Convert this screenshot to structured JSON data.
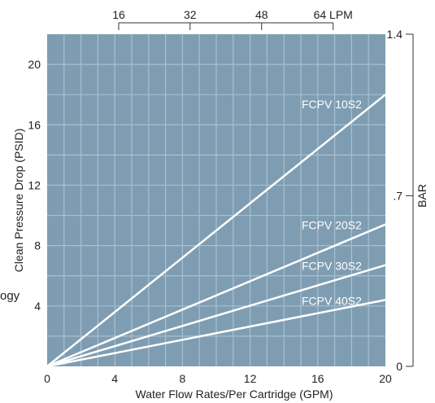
{
  "chart_data": {
    "type": "line",
    "title": "",
    "xlabel": "Water Flow Rates/Per Cartridge (GPM)",
    "ylabel": "Clean Pressure Drop (PSID)",
    "xlim": [
      0,
      20
    ],
    "ylim": [
      0,
      22
    ],
    "x_ticks": [
      0,
      4,
      8,
      12,
      16,
      20
    ],
    "y_ticks": [
      4,
      8,
      12,
      16,
      20
    ],
    "top_axis": {
      "unit_label": "LPM",
      "ticks": [
        {
          "label": "16",
          "gpm": 4.23
        },
        {
          "label": "32",
          "gpm": 8.45
        },
        {
          "label": "48",
          "gpm": 12.68
        },
        {
          "label": "64",
          "gpm": 16.91
        }
      ]
    },
    "right_axis": {
      "label": "BAR",
      "ticks": [
        {
          "label": "0",
          "psid": 0
        },
        {
          "label": ".7",
          "psid": 11.3
        },
        {
          "label": "1.4",
          "psid": 22
        }
      ]
    },
    "grid": true,
    "series": [
      {
        "name": "FCPV 10S2",
        "x": [
          0,
          20
        ],
        "y": [
          0,
          18
        ]
      },
      {
        "name": "FCPV 20S2",
        "x": [
          0,
          20
        ],
        "y": [
          0,
          9.4
        ]
      },
      {
        "name": "FCPV 30S2",
        "x": [
          0,
          20
        ],
        "y": [
          0,
          6.7
        ]
      },
      {
        "name": "FCPV 40S2",
        "x": [
          0,
          20
        ],
        "y": [
          0,
          4.4
        ]
      }
    ],
    "colors": {
      "plot_background": "#7f9db2",
      "grid": "#a9bfcf",
      "series_line": "#ffffff"
    }
  },
  "page": {
    "stray_text": "ogy"
  }
}
